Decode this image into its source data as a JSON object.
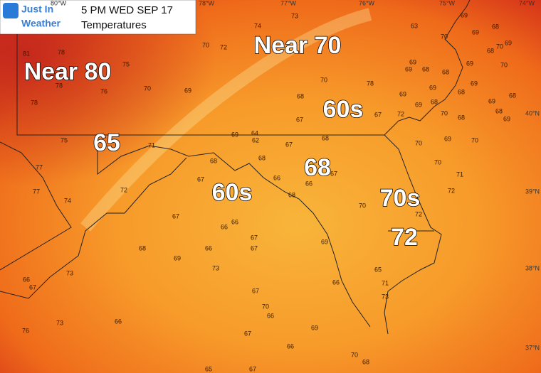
{
  "header": {
    "logo_line1": "Just In",
    "logo_line2": "Weather",
    "title": "5 PM WED SEP 17",
    "subtitle": "Temperatures"
  },
  "grid_labels": [
    "80°W",
    "78°W",
    "77°W",
    "76°W",
    "75°W",
    "74°W",
    "40°N",
    "39°N",
    "38°N",
    "37°N"
  ],
  "labels": [
    "Near 80",
    "Near 70",
    "60s",
    "65",
    "68",
    "60s",
    "70s",
    "72"
  ],
  "stations": [
    63,
    73,
    74,
    70,
    72,
    69,
    69,
    68,
    70,
    69,
    70,
    68,
    69,
    69,
    68,
    69,
    70,
    68,
    69,
    68,
    69,
    69,
    70,
    78,
    68,
    70,
    69,
    76,
    78,
    75,
    78,
    81,
    78,
    69,
    68,
    70,
    68,
    69,
    68,
    68,
    69,
    67,
    72,
    67,
    68,
    69,
    64,
    62,
    67,
    68,
    75,
    77,
    71,
    68,
    67,
    66,
    66,
    68,
    67,
    70,
    70,
    69,
    70,
    71,
    72,
    72,
    74,
    77,
    72,
    67,
    66,
    66,
    67,
    67,
    69,
    68,
    66,
    69,
    70,
    65,
    73,
    66,
    73,
    67,
    66,
    67,
    70,
    71,
    73,
    76,
    73,
    66,
    67,
    66,
    66,
    69,
    70,
    68,
    65,
    67
  ]
}
